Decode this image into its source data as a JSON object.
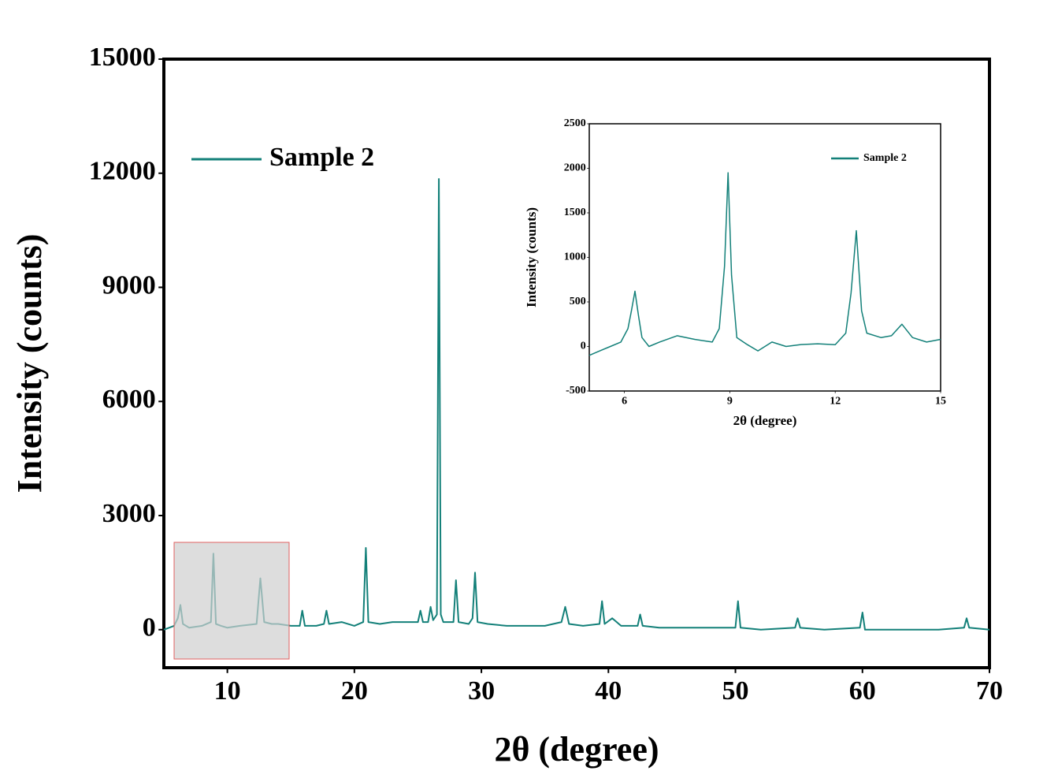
{
  "chart_data": [
    {
      "type": "line",
      "xlabel": "2θ (degree)",
      "ylabel": "Intensity (counts)",
      "xlim": [
        5,
        70
      ],
      "xticks": [
        10,
        20,
        30,
        40,
        50,
        60,
        70
      ],
      "ylim": [
        -1000,
        15000
      ],
      "yticks": [
        0,
        3000,
        6000,
        9000,
        12000,
        15000
      ],
      "x": [
        5,
        5.8,
        6.1,
        6.3,
        6.5,
        7,
        8,
        8.7,
        8.9,
        9.1,
        9.5,
        10,
        11,
        12.3,
        12.6,
        12.9,
        13.5,
        14,
        15,
        15.7,
        15.9,
        16.1,
        17,
        17.6,
        17.8,
        18,
        19,
        20,
        20.7,
        20.9,
        21.1,
        22,
        23,
        24,
        25,
        25.2,
        25.4,
        25.8,
        26.0,
        26.2,
        26.5,
        26.65,
        26.8,
        27,
        27.8,
        28.0,
        28.2,
        29,
        29.3,
        29.5,
        29.7,
        30.5,
        32,
        34,
        35,
        36.3,
        36.6,
        36.9,
        38,
        39.3,
        39.5,
        39.7,
        40.3,
        41,
        42.3,
        42.5,
        42.7,
        44,
        46,
        48,
        49,
        50.0,
        50.2,
        50.4,
        52,
        54.7,
        54.9,
        55.1,
        57,
        59.8,
        60.0,
        60.2,
        62,
        64,
        66,
        68,
        68.2,
        68.4,
        70
      ],
      "series": [
        {
          "name": "Sample 2",
          "color": "#138079",
          "values": [
            0,
            100,
            300,
            650,
            150,
            50,
            100,
            200,
            2000,
            150,
            100,
            50,
            100,
            150,
            1350,
            200,
            150,
            150,
            100,
            100,
            500,
            100,
            100,
            150,
            500,
            150,
            200,
            100,
            200,
            2150,
            200,
            150,
            200,
            200,
            200,
            500,
            200,
            200,
            600,
            250,
            400,
            11850,
            400,
            200,
            200,
            1300,
            200,
            150,
            300,
            1500,
            200,
            150,
            100,
            100,
            100,
            200,
            600,
            150,
            100,
            150,
            750,
            150,
            300,
            100,
            100,
            400,
            100,
            50,
            50,
            50,
            50,
            50,
            750,
            50,
            0,
            50,
            300,
            50,
            0,
            50,
            450,
            0,
            0,
            0,
            0,
            50,
            300,
            50,
            0
          ]
        }
      ]
    },
    {
      "type": "line",
      "xlabel": "2θ (degree)",
      "ylabel": "Intensity (counts)",
      "xlim": [
        5,
        15
      ],
      "xticks": [
        6,
        9,
        12,
        15
      ],
      "ylim": [
        -500,
        2500
      ],
      "yticks": [
        -500,
        0,
        500,
        1000,
        1500,
        2000,
        2500
      ],
      "x": [
        5,
        5.3,
        5.6,
        5.9,
        6.1,
        6.2,
        6.3,
        6.4,
        6.5,
        6.7,
        7,
        7.5,
        8,
        8.5,
        8.7,
        8.85,
        8.95,
        9.05,
        9.2,
        9.5,
        9.8,
        10.2,
        10.6,
        11,
        11.5,
        12,
        12.3,
        12.45,
        12.6,
        12.75,
        12.9,
        13.3,
        13.6,
        13.9,
        14.2,
        14.6,
        15
      ],
      "series": [
        {
          "name": "Sample 2",
          "color": "#138079",
          "values": [
            -100,
            -50,
            0,
            50,
            200,
            400,
            620,
            350,
            100,
            0,
            50,
            120,
            80,
            50,
            200,
            900,
            1950,
            800,
            100,
            20,
            -50,
            50,
            0,
            20,
            30,
            20,
            150,
            600,
            1300,
            400,
            150,
            100,
            120,
            250,
            100,
            50,
            80
          ]
        }
      ]
    }
  ]
}
